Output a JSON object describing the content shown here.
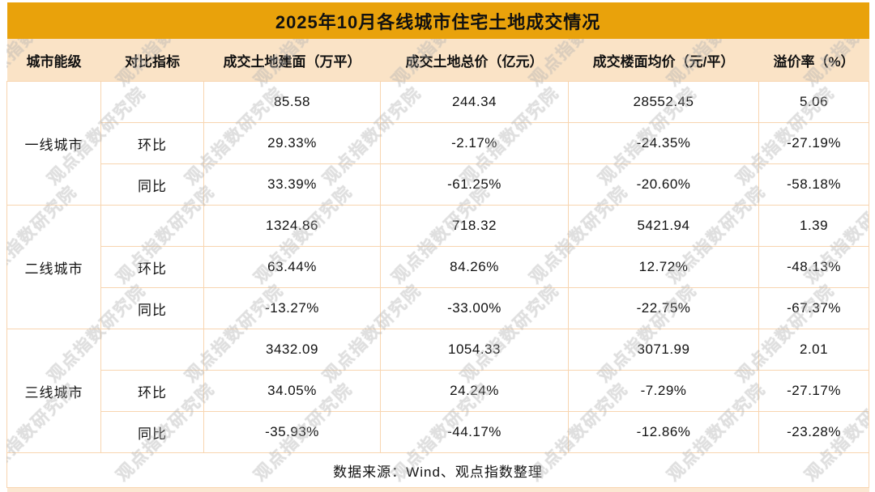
{
  "watermark": {
    "text": "观点指数研究院"
  },
  "colors": {
    "title_bg": "#E9A20B",
    "header_bg": "#FAE3C6",
    "border": "#F8D5B0",
    "strip_bg": "#FBE8D2",
    "text": "#111111"
  },
  "chart_data": {
    "type": "table",
    "title": "2025年10月各线城市住宅土地成交情况",
    "columns": [
      "城市能级",
      "对比指标",
      "成交土地建面（万平）",
      "成交土地总价（亿元）",
      "成交楼面均价（元/平）",
      "溢价率（%）"
    ],
    "groups": [
      {
        "city": "一线城市",
        "rows": [
          {
            "indicator": "",
            "values": [
              "85.58",
              "244.34",
              "28552.45",
              "5.06"
            ]
          },
          {
            "indicator": "环比",
            "values": [
              "29.33%",
              "-2.17%",
              "-24.35%",
              "-27.19%"
            ]
          },
          {
            "indicator": "同比",
            "values": [
              "33.39%",
              "-61.25%",
              "-20.60%",
              "-58.18%"
            ]
          }
        ]
      },
      {
        "city": "二线城市",
        "rows": [
          {
            "indicator": "",
            "values": [
              "1324.86",
              "718.32",
              "5421.94",
              "1.39"
            ]
          },
          {
            "indicator": "环比",
            "values": [
              "63.44%",
              "84.26%",
              "12.72%",
              "-48.13%"
            ]
          },
          {
            "indicator": "同比",
            "values": [
              "-13.27%",
              "-33.00%",
              "-22.75%",
              "-67.37%"
            ]
          }
        ]
      },
      {
        "city": "三线城市",
        "rows": [
          {
            "indicator": "",
            "values": [
              "3432.09",
              "1054.33",
              "3071.99",
              "2.01"
            ]
          },
          {
            "indicator": "环比",
            "values": [
              "34.05%",
              "24.24%",
              "-7.29%",
              "-27.17%"
            ]
          },
          {
            "indicator": "同比",
            "values": [
              "-35.93%",
              "-44.17%",
              "-12.86%",
              "-23.28%"
            ]
          }
        ]
      }
    ],
    "source": "数据来源：Wind、观点指数整理"
  }
}
